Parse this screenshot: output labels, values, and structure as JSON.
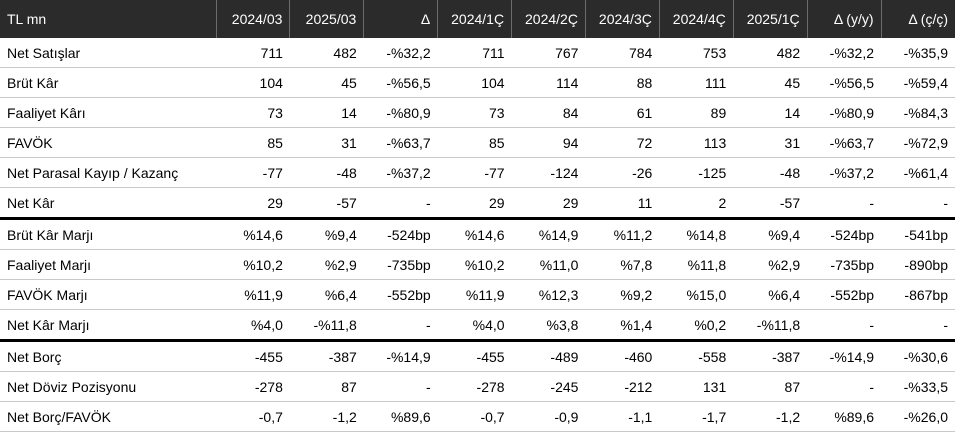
{
  "header": [
    "TL mn",
    "2024/03",
    "2025/03",
    "Δ",
    "2024/1Ç",
    "2024/2Ç",
    "2024/3Ç",
    "2024/4Ç",
    "2025/1Ç",
    "Δ (y/y)",
    "Δ (ç/ç)"
  ],
  "rows": [
    {
      "cells": [
        "Net Satışlar",
        "711",
        "482",
        "-%32,2",
        "711",
        "767",
        "784",
        "753",
        "482",
        "-%32,2",
        "-%35,9"
      ]
    },
    {
      "cells": [
        "Brüt Kâr",
        "104",
        "45",
        "-%56,5",
        "104",
        "114",
        "88",
        "111",
        "45",
        "-%56,5",
        "-%59,4"
      ]
    },
    {
      "cells": [
        "Faaliyet Kârı",
        "73",
        "14",
        "-%80,9",
        "73",
        "84",
        "61",
        "89",
        "14",
        "-%80,9",
        "-%84,3"
      ]
    },
    {
      "cells": [
        "FAVÖK",
        "85",
        "31",
        "-%63,7",
        "85",
        "94",
        "72",
        "113",
        "31",
        "-%63,7",
        "-%72,9"
      ]
    },
    {
      "cells": [
        "Net Parasal Kayıp / Kazanç",
        "-77",
        "-48",
        "-%37,2",
        "-77",
        "-124",
        "-26",
        "-125",
        "-48",
        "-%37,2",
        "-%61,4"
      ]
    },
    {
      "cells": [
        "Net Kâr",
        "29",
        "-57",
        "-",
        "29",
        "29",
        "11",
        "2",
        "-57",
        "-",
        "-"
      ],
      "thick": true
    },
    {
      "cells": [
        "Brüt Kâr Marjı",
        "%14,6",
        "%9,4",
        "-524bp",
        "%14,6",
        "%14,9",
        "%11,2",
        "%14,8",
        "%9,4",
        "-524bp",
        "-541bp"
      ]
    },
    {
      "cells": [
        "Faaliyet Marjı",
        "%10,2",
        "%2,9",
        "-735bp",
        "%10,2",
        "%11,0",
        "%7,8",
        "%11,8",
        "%2,9",
        "-735bp",
        "-890bp"
      ]
    },
    {
      "cells": [
        "FAVÖK Marjı",
        "%11,9",
        "%6,4",
        "-552bp",
        "%11,9",
        "%12,3",
        "%9,2",
        "%15,0",
        "%6,4",
        "-552bp",
        "-867bp"
      ]
    },
    {
      "cells": [
        "Net Kâr Marjı",
        "%4,0",
        "-%11,8",
        "-",
        "%4,0",
        "%3,8",
        "%1,4",
        "%0,2",
        "-%11,8",
        "-",
        "-"
      ],
      "thick": true
    },
    {
      "cells": [
        "Net Borç",
        "-455",
        "-387",
        "-%14,9",
        "-455",
        "-489",
        "-460",
        "-558",
        "-387",
        "-%14,9",
        "-%30,6"
      ]
    },
    {
      "cells": [
        "Net Döviz Pozisyonu",
        "-278",
        "87",
        "-",
        "-278",
        "-245",
        "-212",
        "131",
        "87",
        "-",
        "-%33,5"
      ]
    },
    {
      "cells": [
        "Net Borç/FAVÖK",
        "-0,7",
        "-1,2",
        "%89,6",
        "-0,7",
        "-0,9",
        "-1,1",
        "-1,7",
        "-1,2",
        "%89,6",
        "-%26,0"
      ]
    }
  ]
}
